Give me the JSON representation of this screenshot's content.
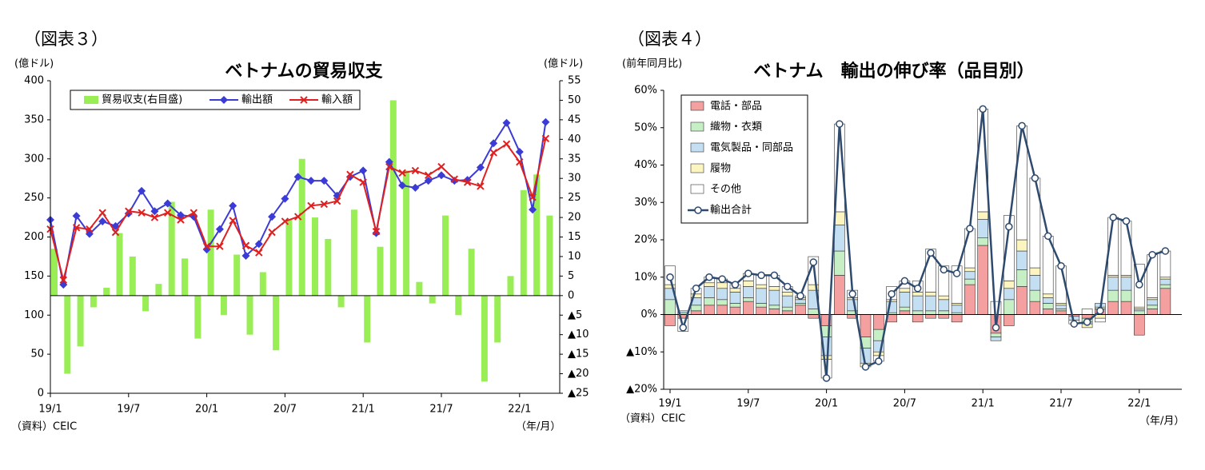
{
  "chart_data": [
    {
      "type": "bar_line",
      "figure_label": "（図表３）",
      "title": "ベトナムの貿易収支",
      "y_label": "(億ドル)",
      "y2_label": "(億ドル)",
      "source": "（資料）CEIC",
      "x_unit": "（年/月）",
      "categories": [
        "19/1",
        null,
        null,
        null,
        null,
        null,
        "19/7",
        null,
        null,
        null,
        null,
        null,
        "20/1",
        null,
        null,
        null,
        null,
        null,
        "20/7",
        null,
        null,
        null,
        null,
        null,
        "21/1",
        null,
        null,
        null,
        null,
        null,
        "21/7",
        null,
        null,
        null,
        null,
        null,
        "22/1",
        null,
        null
      ],
      "ylim": [
        0,
        400
      ],
      "yticks": [
        0,
        50,
        100,
        150,
        200,
        250,
        300,
        350,
        400
      ],
      "y2lim": [
        -25,
        55
      ],
      "y2ticks": [
        {
          "value": -25,
          "label": "▲25"
        },
        {
          "value": -20,
          "label": "▲20"
        },
        {
          "value": -15,
          "label": "▲15"
        },
        {
          "value": -10,
          "label": "▲10"
        },
        {
          "value": -5,
          "label": "▲5"
        },
        0,
        5,
        10,
        15,
        20,
        25,
        30,
        35,
        40,
        45,
        50,
        55
      ],
      "series": [
        {
          "name": "貿易収支(右目盛)",
          "type": "bar",
          "axis": "y2",
          "color": "#99ee55",
          "values": [
            12,
            -20,
            -13,
            -3,
            2,
            16,
            10,
            -4,
            3,
            24,
            9.5,
            -11,
            22,
            -5,
            10.5,
            -10,
            6,
            -14,
            19.5,
            35,
            20,
            14.5,
            -3,
            22,
            -12,
            12.5,
            50,
            32,
            3.5,
            -2,
            20.5,
            -5,
            12,
            -22,
            -12,
            5,
            27,
            31,
            20.5
          ]
        },
        {
          "name": "輸出額",
          "type": "line",
          "marker": "diamond",
          "color": "#3b3bd6",
          "values": [
            222,
            139,
            227,
            204,
            220,
            214,
            230,
            259,
            233,
            243,
            228,
            226,
            184,
            210,
            240,
            176,
            191,
            226,
            249,
            277,
            272,
            272,
            253,
            277,
            285,
            205,
            296,
            266,
            263,
            272,
            279,
            272,
            273,
            289,
            320,
            346,
            309,
            235,
            347
          ]
        },
        {
          "name": "輸入額",
          "type": "line",
          "marker": "x",
          "color": "#e02020",
          "values": [
            210,
            145,
            212,
            210,
            231,
            206,
            233,
            231,
            225,
            231,
            222,
            231,
            188,
            188,
            221,
            189,
            180,
            206,
            220,
            226,
            240,
            242,
            246,
            280,
            270,
            207,
            290,
            282,
            285,
            279,
            290,
            274,
            270,
            265,
            308,
            319,
            296,
            251,
            326
          ]
        }
      ]
    },
    {
      "type": "stacked_bar",
      "figure_label": "（図表４）",
      "title": "ベトナム　輸出の伸び率（品目別）",
      "y_label": "(前年同月比)",
      "source": "（資料）CEIC",
      "x_unit": "（年/月）",
      "categories": [
        "19/1",
        null,
        null,
        null,
        null,
        null,
        "19/7",
        null,
        null,
        null,
        null,
        null,
        "20/1",
        null,
        null,
        null,
        null,
        null,
        "20/7",
        null,
        null,
        null,
        null,
        null,
        "21/1",
        null,
        null,
        null,
        null,
        null,
        "21/7",
        null,
        null,
        null,
        null,
        null,
        "22/1",
        null,
        null
      ],
      "ylim": [
        -20,
        60
      ],
      "yticks": [
        {
          "value": -20,
          "label": "▲20%"
        },
        {
          "value": -10,
          "label": "▲10%"
        },
        {
          "value": 0,
          "label": "0%"
        },
        {
          "value": 10,
          "label": "10%"
        },
        {
          "value": 20,
          "label": "20%"
        },
        {
          "value": 30,
          "label": "30%"
        },
        {
          "value": 40,
          "label": "40%"
        },
        {
          "value": 50,
          "label": "50%"
        },
        {
          "value": 60,
          "label": "60%"
        }
      ],
      "series": [
        {
          "name": "電話・部品",
          "type": "bar",
          "color": "#f4a0a0",
          "values": [
            -3,
            -1,
            1,
            2.5,
            2.5,
            2,
            3.5,
            2,
            1.5,
            1,
            2.5,
            -1,
            -3,
            10.5,
            -1,
            -6,
            -4,
            -2,
            1,
            -2,
            -1,
            -1,
            -2,
            8,
            18.5,
            -5,
            -3,
            7.5,
            3.5,
            1.5,
            1,
            -0.5,
            -1,
            1.5,
            3.5,
            3.5,
            -5.5,
            1.5,
            7
          ]
        },
        {
          "name": "織物・衣類",
          "type": "bar",
          "color": "#c6efc6",
          "values": [
            4,
            0.5,
            1.5,
            2,
            1.5,
            1,
            1,
            1,
            1,
            1,
            0.5,
            1.5,
            -3,
            6.5,
            1,
            -3,
            -3,
            0.5,
            1,
            1,
            1,
            1,
            0.5,
            1.5,
            2,
            -1,
            4,
            4.5,
            3,
            1.5,
            0.5,
            0,
            -1,
            0.5,
            3,
            3,
            1,
            1,
            1
          ]
        },
        {
          "name": "電気製品・同部品",
          "type": "bar",
          "color": "#c5dff2",
          "values": [
            3,
            0.5,
            2,
            3,
            3,
            3,
            3,
            4,
            4,
            3,
            1,
            5,
            -5,
            7,
            3,
            -4,
            -3,
            3,
            4,
            4,
            4,
            3,
            2,
            2,
            5,
            -1,
            3,
            5,
            4,
            1.5,
            1,
            -1,
            -0.5,
            1,
            3.5,
            3.5,
            0.5,
            1.5,
            1.5
          ]
        },
        {
          "name": "履物",
          "type": "bar",
          "color": "#fdf5c0",
          "values": [
            1,
            0,
            1,
            1,
            1.5,
            1,
            1.5,
            1,
            1,
            1,
            0.5,
            1.5,
            -1,
            3.5,
            0.5,
            -1,
            -1,
            0.5,
            1,
            1,
            1,
            1,
            0.5,
            1,
            2,
            0,
            2,
            3,
            2,
            1,
            0.5,
            0,
            -1,
            -1,
            0.5,
            0.5,
            0.5,
            0.5,
            0.5
          ]
        },
        {
          "name": "その他",
          "type": "bar",
          "color": "#ffffff",
          "values": [
            5,
            -3.5,
            1.5,
            1.5,
            1,
            1,
            2,
            2.5,
            3,
            1.5,
            0.5,
            7.5,
            -5,
            23.5,
            2,
            0,
            -1.5,
            3.5,
            2,
            3,
            11.5,
            8,
            10,
            10.5,
            27.5,
            3.5,
            17.5,
            30.5,
            24,
            15.5,
            10,
            -1,
            1.5,
            -1,
            15.5,
            14.5,
            11.5,
            11.5,
            7
          ]
        },
        {
          "name": "輸出合計",
          "type": "line",
          "marker": "circle",
          "color": "#2e4a6e",
          "values": [
            10,
            -3.5,
            7,
            10,
            9.5,
            8,
            11,
            10.5,
            10.5,
            7.5,
            5,
            14,
            -17,
            51,
            5.5,
            -14,
            -12.5,
            5.5,
            9,
            7,
            16.5,
            12,
            11,
            23,
            55,
            -3.5,
            23.5,
            50.5,
            36.5,
            21,
            13,
            -2.5,
            -2,
            1,
            26,
            25,
            8,
            16,
            17
          ]
        }
      ]
    }
  ]
}
